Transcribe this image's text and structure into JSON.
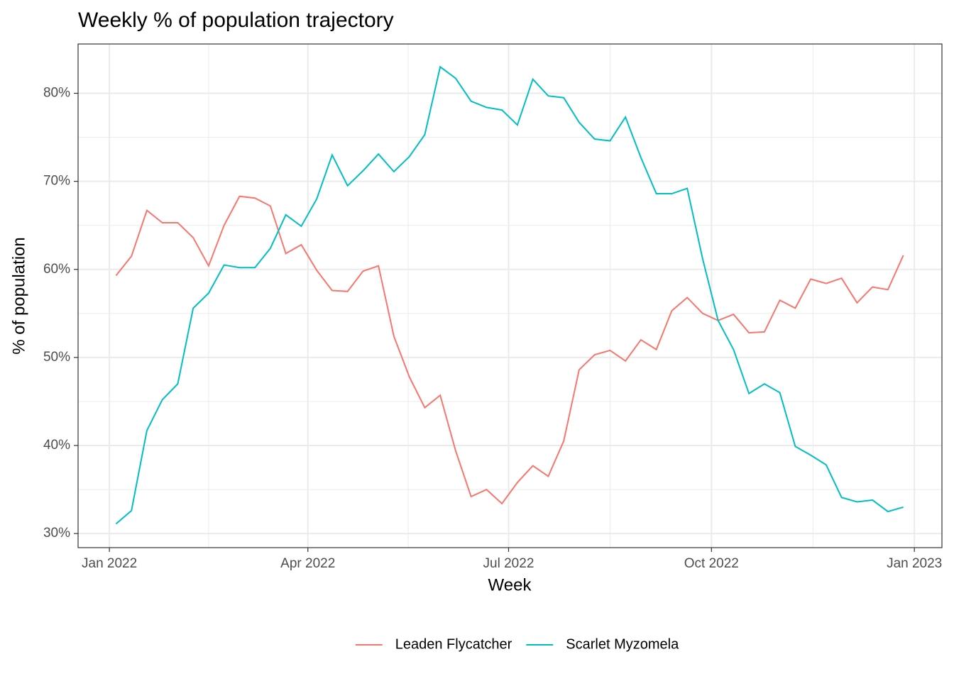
{
  "chart_data": {
    "type": "line",
    "title": "Weekly % of population trajectory",
    "xlabel": "Week",
    "ylabel": "% of population",
    "x": [
      3,
      10,
      17,
      24,
      31,
      38,
      45,
      52,
      59,
      66,
      73,
      80,
      87,
      94,
      101,
      108,
      115,
      122,
      129,
      136,
      143,
      150,
      157,
      164,
      171,
      178,
      185,
      192,
      199,
      206,
      213,
      220,
      227,
      234,
      241,
      248,
      255,
      262,
      269,
      276,
      283,
      290,
      297,
      304,
      311,
      318,
      325,
      332,
      339,
      346,
      353,
      360
    ],
    "series": [
      {
        "name": "Leaden Flycatcher",
        "color": "#f8766d",
        "values": [
          59.3,
          61.5,
          66.7,
          65.3,
          65.3,
          63.6,
          60.4,
          65.0,
          68.3,
          68.1,
          67.2,
          61.8,
          62.8,
          59.9,
          57.6,
          57.5,
          59.8,
          60.4,
          52.4,
          47.8,
          44.3,
          45.7,
          39.4,
          34.2,
          35.0,
          33.4,
          35.8,
          37.7,
          36.5,
          40.5,
          48.6,
          50.3,
          50.8,
          49.6,
          52.0,
          50.9,
          55.3,
          56.8,
          55.0,
          54.2,
          54.9,
          52.8,
          52.9,
          56.5,
          55.6,
          58.9,
          58.4,
          59.0,
          56.2,
          58.0,
          57.7,
          61.6
        ]
      },
      {
        "name": "Scarlet Myzomela",
        "color": "#00bfc4",
        "values": [
          31.1,
          32.6,
          41.7,
          45.2,
          47.0,
          55.6,
          57.3,
          60.5,
          60.2,
          60.2,
          62.4,
          66.2,
          64.9,
          68.0,
          73.0,
          69.5,
          71.2,
          73.1,
          71.1,
          72.8,
          75.3,
          83.0,
          81.7,
          79.1,
          78.4,
          78.1,
          76.4,
          81.6,
          79.7,
          79.5,
          76.7,
          74.8,
          74.6,
          77.3,
          72.7,
          68.6,
          68.6,
          69.2,
          61.2,
          54.2,
          50.9,
          45.9,
          47.0,
          46.0,
          39.9,
          38.9,
          37.8,
          34.1,
          33.6,
          33.8,
          32.5,
          33.0
        ]
      }
    ],
    "xlim": [
      -14.2,
      377.5
    ],
    "xticks": [
      {
        "value": 0,
        "label": "Jan 2022"
      },
      {
        "value": 90,
        "label": "Apr 2022"
      },
      {
        "value": 181,
        "label": "Jul 2022"
      },
      {
        "value": 273,
        "label": "Oct 2022"
      },
      {
        "value": 365,
        "label": "Jan 2023"
      }
    ],
    "ylim": [
      28.4,
      85.6
    ],
    "yticks": [
      {
        "value": 30,
        "label": "30%"
      },
      {
        "value": 40,
        "label": "40%"
      },
      {
        "value": 50,
        "label": "50%"
      },
      {
        "value": 60,
        "label": "60%"
      },
      {
        "value": 70,
        "label": "70%"
      },
      {
        "value": 80,
        "label": "80%"
      }
    ],
    "grid": true,
    "legend": "bottom"
  }
}
